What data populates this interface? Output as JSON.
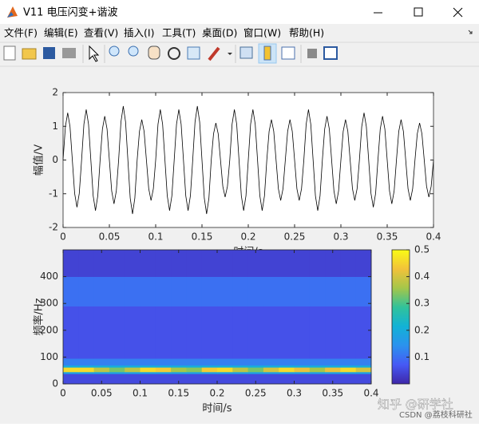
{
  "window": {
    "title": "V11 电压闪变+谐波",
    "menu": [
      "文件(F)",
      "编辑(E)",
      "查看(V)",
      "插入(I)",
      "工具(T)",
      "桌面(D)",
      "窗口(W)",
      "帮助(H)"
    ]
  },
  "chart_data": [
    {
      "type": "line",
      "ylabel": "幅值/V",
      "xlabel": "时间/s",
      "x": [
        0,
        0.0025,
        0.005,
        0.0075,
        0.01,
        0.0125,
        0.015,
        0.0175,
        0.02,
        0.0225,
        0.025,
        0.0275,
        0.03,
        0.0325,
        0.035,
        0.0375,
        0.04,
        0.0425,
        0.045,
        0.0475,
        0.05,
        0.0525,
        0.055,
        0.0575,
        0.06,
        0.0625,
        0.065,
        0.0675,
        0.07,
        0.0725,
        0.075,
        0.0775,
        0.08,
        0.0825,
        0.085,
        0.0875,
        0.09,
        0.0925,
        0.095,
        0.0975,
        0.1,
        0.1025,
        0.105,
        0.1075,
        0.11,
        0.1125,
        0.115,
        0.1175,
        0.12,
        0.1225,
        0.125,
        0.1275,
        0.13,
        0.1325,
        0.135,
        0.1375,
        0.14,
        0.1425,
        0.145,
        0.1475,
        0.15,
        0.1525,
        0.155,
        0.1575,
        0.16,
        0.1625,
        0.165,
        0.1675,
        0.17,
        0.1725,
        0.175,
        0.1775,
        0.18,
        0.1825,
        0.185,
        0.1875,
        0.19,
        0.1925,
        0.195,
        0.1975,
        0.2,
        0.2025,
        0.205,
        0.2075,
        0.21,
        0.2125,
        0.215,
        0.2175,
        0.22,
        0.2225,
        0.225,
        0.2275,
        0.23,
        0.2325,
        0.235,
        0.2375,
        0.24,
        0.2425,
        0.245,
        0.2475,
        0.25,
        0.2525,
        0.255,
        0.2575,
        0.26,
        0.2625,
        0.265,
        0.2675,
        0.27,
        0.2725,
        0.275,
        0.2775,
        0.28,
        0.2825,
        0.285,
        0.2875,
        0.29,
        0.2925,
        0.295,
        0.2975,
        0.3,
        0.3025,
        0.305,
        0.3075,
        0.31,
        0.3125,
        0.315,
        0.3175,
        0.32,
        0.3225,
        0.325,
        0.3275,
        0.33,
        0.3325,
        0.335,
        0.3375,
        0.34,
        0.3425,
        0.345,
        0.3475,
        0.35,
        0.3525,
        0.355,
        0.3575,
        0.36,
        0.3625,
        0.365,
        0.3675,
        0.37,
        0.3725,
        0.375,
        0.3775,
        0.38,
        0.3825,
        0.385,
        0.3875,
        0.39,
        0.3925,
        0.395,
        0.3975,
        0.4
      ],
      "series": [
        {
          "color": "#000000",
          "values": [
            0,
            0.99,
            1.4,
            0.99,
            0,
            -0.99,
            -1.4,
            -0.99,
            0,
            1.06,
            1.5,
            1.06,
            0,
            -1.06,
            -1.5,
            -1.06,
            0,
            0.92,
            1.3,
            0.92,
            0,
            -0.92,
            -1.3,
            -0.92,
            0,
            1.13,
            1.6,
            1.13,
            0,
            -1.13,
            -1.6,
            -1.13,
            0,
            0.85,
            1.2,
            0.85,
            0,
            -0.85,
            -1.2,
            -0.85,
            0,
            1.06,
            1.5,
            1.06,
            0,
            -1.06,
            -1.5,
            -1.06,
            0,
            1.06,
            1.5,
            1.06,
            0,
            -1.06,
            -1.5,
            -1.06,
            0,
            1.13,
            1.6,
            1.13,
            0,
            -1.13,
            -1.6,
            -1.13,
            0,
            0.78,
            1.1,
            0.78,
            0,
            -0.78,
            -1.1,
            -0.78,
            0,
            1.06,
            1.5,
            1.06,
            0,
            -1.06,
            -1.5,
            -1.06,
            0,
            1.06,
            1.5,
            1.06,
            0,
            -1.06,
            -1.5,
            -1.06,
            0,
            0.85,
            1.2,
            0.85,
            0,
            -0.85,
            -1.2,
            -0.85,
            0,
            0.85,
            1.2,
            0.85,
            0,
            -0.85,
            -1.2,
            -0.85,
            0,
            1.06,
            1.5,
            1.06,
            0,
            -1.06,
            -1.5,
            -1.06,
            0,
            0.92,
            1.3,
            0.92,
            0,
            -0.92,
            -1.3,
            -0.92,
            0,
            0.85,
            1.2,
            0.85,
            0,
            -0.85,
            -1.2,
            -0.85,
            0,
            0.99,
            1.4,
            0.99,
            0,
            -0.99,
            -1.4,
            -0.99,
            0,
            0.92,
            1.3,
            0.92,
            0,
            -0.92,
            -1.3,
            -0.92,
            0,
            0.85,
            1.2,
            0.85,
            0,
            -0.85,
            -1.2,
            -0.85,
            0,
            0.78,
            1.1,
            0.78,
            0,
            -0.78,
            -1.1,
            -0.78,
            0
          ]
        }
      ],
      "xlim": [
        0,
        0.4
      ],
      "ylim": [
        -2,
        2
      ],
      "xticks": [
        0,
        0.05,
        0.1,
        0.15,
        0.2,
        0.25,
        0.3,
        0.35,
        0.4
      ],
      "yticks": [
        -2,
        -1,
        0,
        1,
        2
      ]
    },
    {
      "type": "heatmap",
      "ylabel": "频率/Hz",
      "xlabel": "时间/s",
      "x_edges": [
        0,
        0.02,
        0.04,
        0.06,
        0.08,
        0.1,
        0.12,
        0.14,
        0.16,
        0.18,
        0.2,
        0.22,
        0.24,
        0.26,
        0.28,
        0.3,
        0.32,
        0.34,
        0.36,
        0.38,
        0.4
      ],
      "y_edges": [
        0,
        38,
        45,
        62,
        70,
        95,
        290,
        400,
        500
      ],
      "z": [
        [
          0.05,
          0.05,
          0.05,
          0.05,
          0.05,
          0.05,
          0.05,
          0.05,
          0.05,
          0.05,
          0.05,
          0.05,
          0.05,
          0.05,
          0.05,
          0.05,
          0.05,
          0.05,
          0.05,
          0.05
        ],
        [
          0.18,
          0.18,
          0.18,
          0.18,
          0.18,
          0.18,
          0.18,
          0.18,
          0.18,
          0.18,
          0.18,
          0.18,
          0.18,
          0.18,
          0.18,
          0.18,
          0.18,
          0.18,
          0.18,
          0.18
        ],
        [
          0.46,
          0.46,
          0.38,
          0.33,
          0.38,
          0.46,
          0.44,
          0.36,
          0.34,
          0.44,
          0.46,
          0.38,
          0.33,
          0.4,
          0.46,
          0.42,
          0.36,
          0.42,
          0.46,
          0.4
        ],
        [
          0.2,
          0.2,
          0.2,
          0.2,
          0.2,
          0.2,
          0.2,
          0.2,
          0.2,
          0.2,
          0.2,
          0.2,
          0.2,
          0.2,
          0.2,
          0.2,
          0.2,
          0.2,
          0.2,
          0.2
        ],
        [
          0.12,
          0.12,
          0.12,
          0.12,
          0.12,
          0.12,
          0.12,
          0.12,
          0.12,
          0.12,
          0.12,
          0.12,
          0.12,
          0.12,
          0.12,
          0.12,
          0.12,
          0.12,
          0.12,
          0.12
        ],
        [
          0.06,
          0.06,
          0.06,
          0.06,
          0.06,
          0.06,
          0.06,
          0.06,
          0.06,
          0.06,
          0.06,
          0.06,
          0.06,
          0.06,
          0.06,
          0.06,
          0.06,
          0.06,
          0.06,
          0.06
        ],
        [
          0.1,
          0.1,
          0.1,
          0.1,
          0.1,
          0.1,
          0.1,
          0.1,
          0.1,
          0.1,
          0.1,
          0.1,
          0.1,
          0.1,
          0.1,
          0.1,
          0.1,
          0.1,
          0.1,
          0.1
        ],
        [
          0.04,
          0.04,
          0.04,
          0.04,
          0.04,
          0.04,
          0.04,
          0.04,
          0.04,
          0.04,
          0.04,
          0.04,
          0.04,
          0.04,
          0.04,
          0.04,
          0.04,
          0.04,
          0.04,
          0.04
        ]
      ],
      "xlim": [
        0,
        0.4
      ],
      "ylim": [
        0,
        500
      ],
      "xticks": [
        0,
        0.05,
        0.1,
        0.15,
        0.2,
        0.25,
        0.3,
        0.35,
        0.4
      ],
      "yticks": [
        0,
        100,
        200,
        300,
        400
      ],
      "clim": [
        0,
        0.5
      ],
      "colorbar_ticks": [
        0.1,
        0.2,
        0.3,
        0.4,
        0.5
      ],
      "colormap": [
        "#3e26a8",
        "#4659f5",
        "#2b92ee",
        "#12b2d6",
        "#31c29b",
        "#a4c64a",
        "#f2c23a",
        "#f9fb15"
      ]
    }
  ],
  "watermarks": [
    "知乎 @研学社",
    "CSDN @荔枝科研社"
  ]
}
